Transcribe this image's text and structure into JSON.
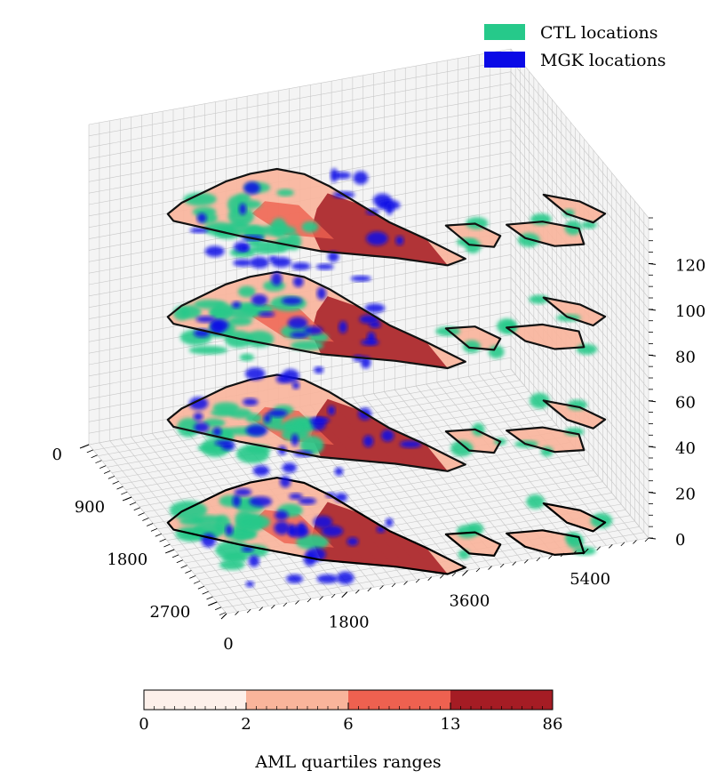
{
  "chart_data": {
    "type": "3d-stacked-spatial-slices",
    "legend": [
      {
        "label": "CTL locations",
        "color": "#26c98a"
      },
      {
        "label": "MGK locations",
        "color": "#0a0ae6"
      }
    ],
    "axes": {
      "x": {
        "ticks": [
          "0",
          "1800",
          "3600",
          "5400"
        ],
        "range": [
          0,
          6300
        ]
      },
      "y": {
        "ticks": [
          "0",
          "900",
          "1800",
          "2700"
        ],
        "range": [
          0,
          2900
        ]
      },
      "z": {
        "ticks": [
          "0",
          "20",
          "40",
          "60",
          "80",
          "100",
          "120"
        ],
        "range": [
          0,
          140
        ]
      }
    },
    "slices_z": [
      0,
      45,
      90,
      135
    ],
    "grid": true,
    "colorbar": {
      "label": "AML quartiles ranges",
      "boundaries": [
        "0",
        "2",
        "6",
        "13",
        "86"
      ],
      "colors": [
        "#fdf0ea",
        "#f9b49b",
        "#ee6150",
        "#a51c24"
      ]
    }
  }
}
